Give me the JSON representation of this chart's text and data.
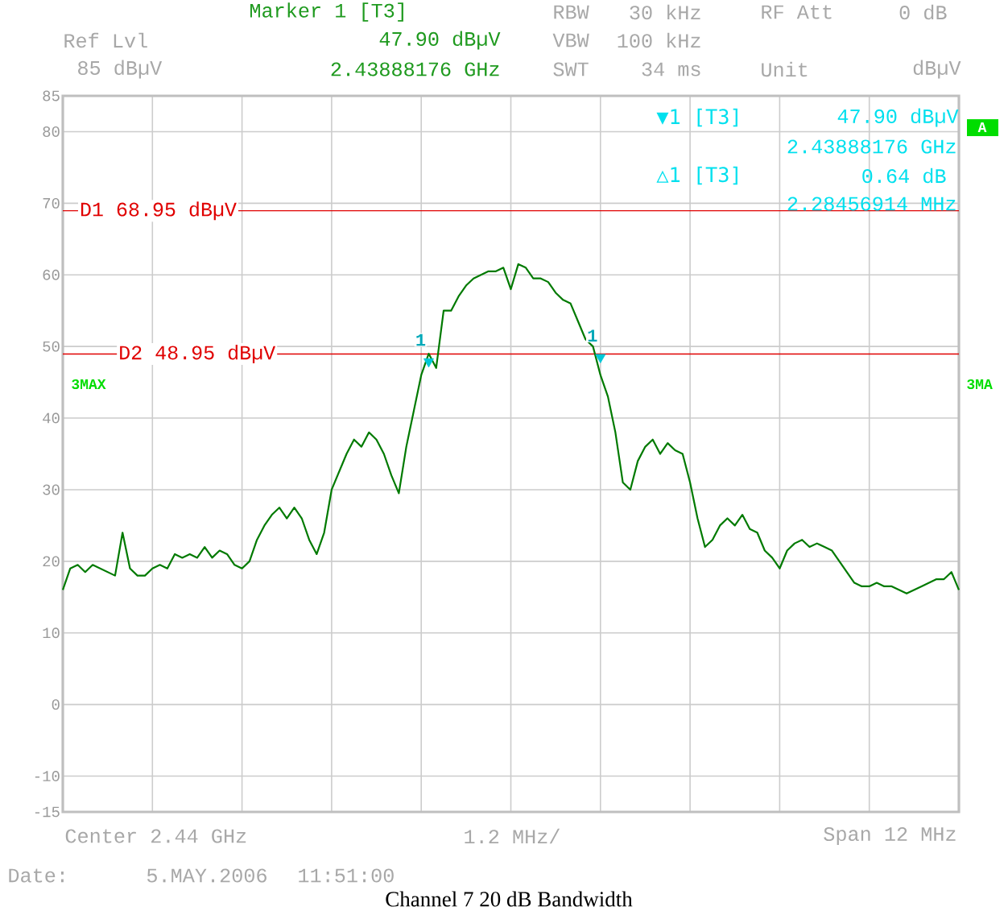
{
  "chart_data": {
    "type": "line",
    "title": "Channel 7 20 dB Bandwidth",
    "categories": [
      null,
      null,
      null,
      null,
      null,
      null,
      null,
      null,
      null,
      null,
      null,
      null,
      null,
      null,
      null,
      null,
      null,
      null,
      null,
      null,
      null,
      null,
      null,
      null,
      null,
      null,
      null,
      null,
      null,
      null,
      null,
      null,
      null,
      null,
      null,
      null,
      null,
      null,
      null,
      null,
      null,
      null,
      null,
      null,
      null,
      null,
      null,
      null,
      null,
      null,
      null,
      null,
      null,
      null,
      null,
      null,
      null,
      null,
      null,
      null,
      null,
      null,
      null,
      null,
      null,
      null,
      null,
      null,
      null,
      null,
      null,
      null,
      null,
      null,
      null,
      null,
      null,
      null,
      null,
      null,
      null,
      null,
      null,
      null,
      null,
      null,
      null,
      null,
      null,
      null,
      null,
      null,
      null,
      null,
      null,
      null,
      null,
      null,
      null,
      null,
      null,
      null,
      null,
      null,
      null,
      null,
      null,
      null,
      null,
      null,
      null,
      null,
      null,
      null,
      null,
      null,
      null,
      null,
      null,
      null,
      null
    ],
    "series": [
      {
        "color": "#007a00",
        "values": [
          16,
          19,
          19.5,
          18.5,
          19.5,
          19,
          18.5,
          18,
          24,
          19,
          18,
          18,
          19,
          19.5,
          19,
          21,
          20.5,
          21,
          20.5,
          22,
          20.5,
          21.5,
          21,
          19.5,
          19,
          20,
          23,
          25,
          26.5,
          27.5,
          26,
          27.5,
          26,
          23,
          21,
          24,
          30,
          32.5,
          35,
          37,
          36,
          38,
          37,
          35,
          32,
          29.5,
          36,
          41,
          46,
          49,
          47,
          55,
          55,
          57,
          58.5,
          59.5,
          60,
          60.5,
          60.5,
          61,
          58,
          61.5,
          61,
          59.5,
          59.5,
          59,
          57.5,
          56.5,
          56,
          53.5,
          51,
          50,
          46,
          43,
          38,
          31,
          30,
          34,
          36,
          37,
          35,
          36.5,
          35.5,
          35,
          31,
          26,
          22,
          23,
          25,
          26,
          25,
          26.5,
          24.5,
          24,
          21.5,
          20.5,
          19,
          21.5,
          22.5,
          23,
          22,
          22.5,
          22,
          21.5,
          20,
          18.5,
          17,
          16.5,
          16.5,
          17,
          16.5,
          16.5,
          16,
          15.5,
          16,
          16.5,
          17,
          17.5,
          17.5,
          18.5,
          16
        ]
      },
      {
        "type": "scatter",
        "color": "#00c8d8",
        "marker": "triangle",
        "values": [
          null,
          null,
          null,
          null,
          null,
          null,
          null,
          null,
          null,
          null,
          null,
          null,
          null,
          null,
          null,
          null,
          null,
          null,
          null,
          null,
          null,
          null,
          null,
          null,
          null,
          null,
          null,
          null,
          null,
          null,
          null,
          null,
          null,
          null,
          null,
          null,
          null,
          null,
          null,
          null,
          null,
          null,
          null,
          null,
          null,
          null,
          null,
          null,
          null,
          47.9,
          null,
          null,
          null,
          null,
          null,
          null,
          null,
          null,
          null,
          null,
          null,
          null,
          null,
          null,
          null,
          null,
          null,
          null,
          null,
          null,
          null,
          null,
          48.5,
          null,
          null,
          null,
          null,
          null,
          null,
          null,
          null,
          null,
          null,
          null,
          null,
          null,
          null,
          null,
          null,
          null,
          null,
          null,
          null,
          null,
          null,
          null,
          null,
          null,
          null,
          null,
          null,
          null,
          null,
          null,
          null,
          null,
          null,
          null,
          null,
          null,
          null,
          null,
          null,
          null,
          null,
          null,
          null,
          null,
          null,
          null,
          null
        ]
      }
    ],
    "ylim": [
      -15,
      85
    ],
    "yticks": [
      85,
      80,
      70,
      60,
      50,
      40,
      30,
      20,
      10,
      0,
      -10,
      -15
    ],
    "grid": true,
    "tick_labels": "y",
    "ref_lines": [
      {
        "axis": "y",
        "value": 68.95,
        "label": "D1 68.95 dBµV",
        "color": "#e00000"
      },
      {
        "axis": "y",
        "value": 48.95,
        "label": "D2 48.95 dBµV",
        "color": "#e00000"
      }
    ],
    "annotations": [
      "Marker 1 [T3]",
      "47.90 dBµV",
      "2.43888176 GHz",
      "Ref Lvl",
      "85 dBµV",
      "RBW",
      "30 kHz",
      "VBW",
      "100 kHz",
      "SWT",
      "34 ms",
      "RF Att",
      "0 dB",
      "Unit",
      "dBµV",
      "▼1 [T3]",
      "47.90 dBµV",
      "2.43888176 GHz",
      "△1 [T3]",
      "0.64 dB",
      "2.28456914 MHz",
      "3MAX",
      "3MA",
      "A",
      "Center 2.44 GHz",
      "1.2 MHz/",
      "Span 12 MHz",
      "Date:",
      "5.MAY.2006",
      "11:51:00",
      {
        "text": "1",
        "y": 47.9
      },
      {
        "text": "1",
        "y": 48.5
      }
    ]
  }
}
